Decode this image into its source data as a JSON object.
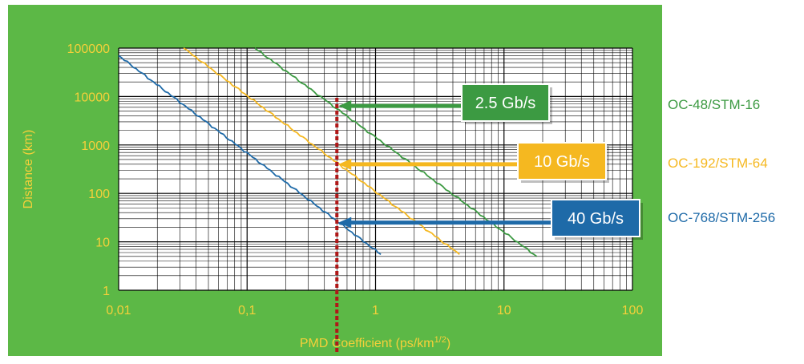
{
  "chart_data": {
    "type": "line",
    "title": "",
    "xlabel": "PMD Coefficient (ps/km",
    "xlabel_sup": "1/2",
    "xlabel_close": ")",
    "ylabel": "Distance (km)",
    "xscale": "log",
    "yscale": "log",
    "xlim": [
      0.01,
      100
    ],
    "ylim": [
      1,
      100000
    ],
    "grid": true,
    "x_ticks": [
      {
        "value": 0.01,
        "label": "0,01"
      },
      {
        "value": 0.1,
        "label": "0,1"
      },
      {
        "value": 1,
        "label": "1"
      },
      {
        "value": 10,
        "label": "10"
      },
      {
        "value": 100,
        "label": "100"
      }
    ],
    "y_ticks": [
      {
        "value": 1,
        "label": "1"
      },
      {
        "value": 10,
        "label": "10"
      },
      {
        "value": 100,
        "label": "100"
      },
      {
        "value": 1000,
        "label": "1000"
      },
      {
        "value": 10000,
        "label": "10000"
      },
      {
        "value": 100000,
        "label": "100000"
      }
    ],
    "reference_line": {
      "x": 0.5,
      "color": "#b01818"
    },
    "series": [
      {
        "name": "2.5 Gb/s",
        "standard": "OC-48/STM-16",
        "color": "#3c9a42",
        "x": [
          0.115,
          18
        ],
        "y": [
          100000,
          5
        ],
        "marker": {
          "x": 0.5,
          "y": 6400
        }
      },
      {
        "name": "10 Gb/s",
        "standard": "OC-192/STM-64",
        "color": "#f5b820",
        "x": [
          0.032,
          4.5
        ],
        "y": [
          100000,
          5.5
        ],
        "marker": {
          "x": 0.5,
          "y": 400
        }
      },
      {
        "name": "40 Gb/s",
        "standard": "OC-768/STM-256",
        "color": "#1e6aa8",
        "x": [
          0.01,
          1.1
        ],
        "y": [
          70000,
          5.5
        ],
        "marker": {
          "x": 0.5,
          "y": 25
        }
      }
    ]
  },
  "colors": {
    "panel_background": "#5cb846",
    "plot_background": "#ffffff",
    "axis_text": "#f5d03a",
    "grid": "#000000",
    "label_box_border": "#ffffff"
  }
}
